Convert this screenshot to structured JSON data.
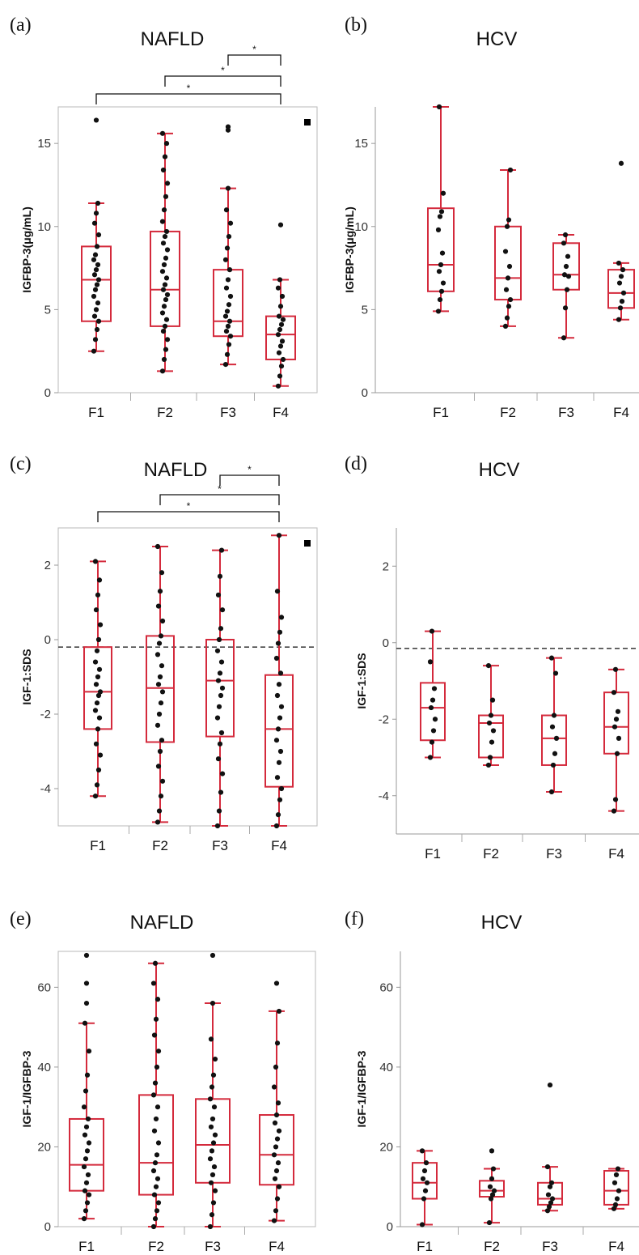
{
  "chart_data": [
    {
      "panel": "(a)",
      "title": "NAFLD",
      "type": "box",
      "ylabel": "IGFBP-3(μg/mL)",
      "ylim": [
        0,
        17.2
      ],
      "yticks": [
        0,
        5,
        10,
        15
      ],
      "categories": [
        "F1",
        "F2",
        "F3",
        "F4"
      ],
      "boxes": [
        {
          "min": 2.5,
          "q1": 4.3,
          "median": 6.8,
          "q3": 8.8,
          "max": 11.4,
          "outliers": [
            16.4
          ]
        },
        {
          "min": 1.3,
          "q1": 4.0,
          "median": 6.2,
          "q3": 9.7,
          "max": 15.6,
          "outliers": []
        },
        {
          "min": 1.7,
          "q1": 3.4,
          "median": 4.3,
          "q3": 7.4,
          "max": 12.3,
          "outliers": [
            15.8,
            16.0
          ]
        },
        {
          "min": 0.4,
          "q1": 2.0,
          "median": 3.5,
          "q3": 4.6,
          "max": 6.8,
          "outliers": [
            10.1
          ]
        }
      ],
      "points": [
        [
          2.5,
          3.2,
          3.8,
          4.3,
          4.6,
          5.0,
          5.4,
          5.8,
          6.2,
          6.5,
          6.8,
          7.1,
          7.4,
          7.7,
          8.0,
          8.3,
          8.8,
          9.5,
          10.2,
          10.8,
          11.4,
          16.4
        ],
        [
          1.3,
          2.0,
          2.6,
          3.2,
          3.7,
          4.0,
          4.4,
          4.8,
          5.2,
          5.6,
          5.9,
          6.2,
          6.5,
          6.9,
          7.3,
          7.7,
          8.1,
          8.6,
          9.0,
          9.4,
          9.7,
          10.3,
          11.0,
          11.8,
          12.6,
          13.4,
          14.2,
          15.0,
          15.6
        ],
        [
          1.7,
          2.3,
          2.9,
          3.4,
          3.7,
          4.0,
          4.3,
          4.6,
          4.9,
          5.3,
          5.8,
          6.3,
          6.8,
          7.4,
          8.0,
          8.7,
          9.4,
          10.2,
          11.0,
          12.3,
          15.8,
          16.0
        ],
        [
          0.4,
          1.0,
          1.6,
          2.0,
          2.4,
          2.8,
          3.1,
          3.5,
          3.8,
          4.1,
          4.4,
          4.6,
          5.2,
          5.8,
          6.3,
          6.8,
          10.1
        ]
      ],
      "brackets": [
        [
          "F3",
          "F4"
        ],
        [
          "F2",
          "F4"
        ],
        [
          "F1",
          "F4"
        ]
      ],
      "bracket_label": "*",
      "legend_marker": true
    },
    {
      "panel": "(b)",
      "title": "HCV",
      "type": "box",
      "ylabel": "IGFBP-3(μg/mL)",
      "ylim": [
        0,
        17.2
      ],
      "yticks": [
        0,
        5,
        10,
        15
      ],
      "categories": [
        "F1",
        "F2",
        "F3",
        "F4"
      ],
      "boxes": [
        {
          "min": 4.9,
          "q1": 6.1,
          "median": 7.7,
          "q3": 11.1,
          "max": 17.2,
          "outliers": []
        },
        {
          "min": 4.0,
          "q1": 5.6,
          "median": 6.9,
          "q3": 10.0,
          "max": 13.4,
          "outliers": []
        },
        {
          "min": 3.3,
          "q1": 6.2,
          "median": 7.1,
          "q3": 9.0,
          "max": 9.5,
          "outliers": []
        },
        {
          "min": 4.4,
          "q1": 5.1,
          "median": 6.0,
          "q3": 7.4,
          "max": 7.8,
          "outliers": [
            13.8
          ]
        }
      ],
      "points": [
        [
          4.9,
          5.6,
          6.1,
          6.6,
          7.3,
          7.7,
          8.4,
          9.8,
          10.6,
          10.9,
          12.0,
          17.2
        ],
        [
          4.0,
          4.5,
          5.2,
          5.6,
          6.2,
          6.9,
          7.6,
          8.5,
          10.0,
          10.4,
          13.4
        ],
        [
          3.3,
          5.1,
          6.2,
          7.0,
          7.1,
          7.6,
          8.2,
          9.0,
          9.5
        ],
        [
          4.4,
          5.1,
          5.5,
          6.0,
          6.6,
          7.0,
          7.4,
          7.8,
          13.8
        ]
      ],
      "brackets": [],
      "legend_marker": false
    },
    {
      "panel": "(c)",
      "title": "NAFLD",
      "type": "box",
      "ylabel": "IGF-1:SDS",
      "ylim": [
        -5,
        3
      ],
      "yticks": [
        -4,
        -2,
        0,
        2
      ],
      "reference_line": -0.2,
      "categories": [
        "F1",
        "F2",
        "F3",
        "F4"
      ],
      "boxes": [
        {
          "min": -4.2,
          "q1": -2.4,
          "median": -1.4,
          "q3": -0.2,
          "max": 2.1,
          "outliers": []
        },
        {
          "min": -4.9,
          "q1": -2.75,
          "median": -1.3,
          "q3": 0.1,
          "max": 2.5,
          "outliers": []
        },
        {
          "min": -5.0,
          "q1": -2.6,
          "median": -1.1,
          "q3": 0.0,
          "max": 2.4,
          "outliers": []
        },
        {
          "min": -5.0,
          "q1": -3.95,
          "median": -2.4,
          "q3": -0.95,
          "max": 2.8,
          "outliers": []
        }
      ],
      "points": [
        [
          -4.2,
          -3.9,
          -3.5,
          -3.1,
          -2.8,
          -2.4,
          -2.1,
          -1.9,
          -1.7,
          -1.5,
          -1.4,
          -1.2,
          -1.0,
          -0.8,
          -0.6,
          -0.3,
          0.0,
          0.4,
          0.8,
          1.2,
          1.6,
          2.1
        ],
        [
          -4.9,
          -4.6,
          -4.2,
          -3.8,
          -3.4,
          -3.0,
          -2.7,
          -2.3,
          -2.0,
          -1.7,
          -1.4,
          -1.2,
          -1.0,
          -0.7,
          -0.4,
          -0.1,
          0.1,
          0.5,
          0.9,
          1.3,
          1.8,
          2.5
        ],
        [
          -5.0,
          -4.6,
          -4.1,
          -3.6,
          -3.2,
          -2.8,
          -2.5,
          -2.1,
          -1.8,
          -1.5,
          -1.3,
          -1.1,
          -0.9,
          -0.6,
          -0.3,
          0.0,
          0.3,
          0.8,
          1.2,
          1.7,
          2.4
        ],
        [
          -5.0,
          -4.7,
          -4.3,
          -4.0,
          -3.7,
          -3.3,
          -3.0,
          -2.7,
          -2.4,
          -2.1,
          -1.8,
          -1.5,
          -1.2,
          -0.9,
          -0.5,
          -0.1,
          0.2,
          0.6,
          1.3,
          2.8
        ]
      ],
      "brackets": [
        [
          "F3",
          "F4"
        ],
        [
          "F2",
          "F4"
        ],
        [
          "F1",
          "F4"
        ]
      ],
      "bracket_label": "*",
      "legend_marker": true
    },
    {
      "panel": "(d)",
      "title": "HCV",
      "type": "box",
      "ylabel": "IGF-1:SDS",
      "ylim": [
        -5,
        3
      ],
      "yticks": [
        -4,
        -2,
        0,
        2
      ],
      "reference_line": -0.15,
      "categories": [
        "F1",
        "F2",
        "F3",
        "F4"
      ],
      "boxes": [
        {
          "min": -3.0,
          "q1": -2.55,
          "median": -1.7,
          "q3": -1.05,
          "max": 0.3,
          "outliers": []
        },
        {
          "min": -3.2,
          "q1": -3.0,
          "median": -2.1,
          "q3": -1.9,
          "max": -0.6,
          "outliers": []
        },
        {
          "min": -3.9,
          "q1": -3.2,
          "median": -2.5,
          "q3": -1.9,
          "max": -0.4,
          "outliers": []
        },
        {
          "min": -4.4,
          "q1": -2.9,
          "median": -2.2,
          "q3": -1.3,
          "max": -0.7,
          "outliers": []
        }
      ],
      "points": [
        [
          -3.0,
          -2.6,
          -2.3,
          -2.0,
          -1.7,
          -1.5,
          -1.2,
          -0.5,
          0.3
        ],
        [
          -3.2,
          -3.0,
          -2.6,
          -2.3,
          -2.1,
          -1.9,
          -1.5,
          -0.6
        ],
        [
          -3.9,
          -3.2,
          -2.9,
          -2.5,
          -2.2,
          -1.9,
          -0.8,
          -0.4
        ],
        [
          -4.4,
          -4.1,
          -2.9,
          -2.5,
          -2.2,
          -2.0,
          -1.8,
          -1.3,
          -0.7
        ]
      ],
      "brackets": [],
      "legend_marker": false
    },
    {
      "panel": "(e)",
      "title": "NAFLD",
      "type": "box",
      "ylabel": "IGF-1/IGFBP-3",
      "ylim": [
        0,
        69
      ],
      "yticks": [
        0,
        20,
        40,
        60
      ],
      "categories": [
        "F1",
        "F2",
        "F3",
        "F4"
      ],
      "boxes": [
        {
          "min": 2,
          "q1": 9,
          "median": 15.5,
          "q3": 27,
          "max": 51,
          "outliers": [
            56,
            61,
            68
          ]
        },
        {
          "min": 0,
          "q1": 8,
          "median": 16,
          "q3": 33,
          "max": 66,
          "outliers": []
        },
        {
          "min": 0,
          "q1": 11,
          "median": 20.5,
          "q3": 32,
          "max": 56,
          "outliers": [
            68
          ]
        },
        {
          "min": 1.5,
          "q1": 10.5,
          "median": 18,
          "q3": 28,
          "max": 54,
          "outliers": [
            61
          ]
        }
      ],
      "points": [
        [
          2,
          4,
          6,
          8,
          9,
          11,
          13,
          15,
          17,
          19,
          21,
          23,
          25,
          27,
          30,
          34,
          38,
          44,
          51,
          56,
          61,
          68
        ],
        [
          0,
          2,
          4,
          6,
          8,
          10,
          12,
          14,
          16,
          18,
          21,
          24,
          27,
          30,
          33,
          36,
          40,
          44,
          48,
          52,
          57,
          61,
          66
        ],
        [
          0,
          3,
          6,
          9,
          11,
          13,
          15,
          17,
          19,
          21,
          23,
          25,
          27,
          30,
          32,
          35,
          38,
          42,
          47,
          56,
          68
        ],
        [
          1.5,
          4,
          7,
          10,
          12,
          14,
          16,
          18,
          20,
          22,
          24,
          26,
          28,
          31,
          35,
          40,
          46,
          54,
          61
        ]
      ],
      "brackets": [],
      "legend_marker": false
    },
    {
      "panel": "(f)",
      "title": "HCV",
      "type": "box",
      "ylabel": "IGF-1/IGFBP-3",
      "ylim": [
        0,
        69
      ],
      "yticks": [
        0,
        20,
        40,
        60
      ],
      "categories": [
        "F1",
        "F2",
        "F3",
        "F4"
      ],
      "boxes": [
        {
          "min": 0.5,
          "q1": 7,
          "median": 11,
          "q3": 16,
          "max": 19,
          "outliers": []
        },
        {
          "min": 1,
          "q1": 7.5,
          "median": 9,
          "q3": 11.5,
          "max": 14.5,
          "outliers": [
            19
          ]
        },
        {
          "min": 4,
          "q1": 5.5,
          "median": 7,
          "q3": 11,
          "max": 15,
          "outliers": [
            35.5
          ]
        },
        {
          "min": 4.5,
          "q1": 5.5,
          "median": 9,
          "q3": 14,
          "max": 14.5,
          "outliers": []
        }
      ],
      "points": [
        [
          0.5,
          7,
          9,
          11,
          12,
          14,
          16,
          19
        ],
        [
          1,
          7,
          8,
          9,
          10,
          12,
          14.5,
          19
        ],
        [
          4,
          5,
          6,
          7,
          8,
          10,
          11,
          15,
          35.5
        ],
        [
          4.5,
          5.5,
          7,
          9,
          11,
          13,
          14.5
        ]
      ],
      "brackets": [],
      "legend_marker": false
    }
  ]
}
